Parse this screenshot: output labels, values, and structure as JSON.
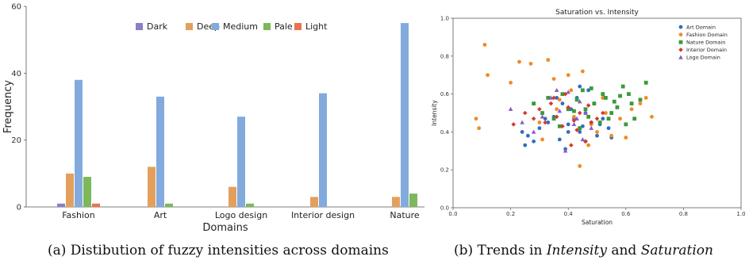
{
  "chart_data": [
    {
      "type": "bar",
      "title": "",
      "xlabel": "Domains",
      "ylabel": "Frequency",
      "ylim": [
        0,
        60
      ],
      "yticks": [
        0,
        20,
        40,
        60
      ],
      "categories": [
        "Fashion",
        "Art",
        "Logo design",
        "Interior design",
        "Nature"
      ],
      "series": [
        {
          "name": "Dark",
          "color": "#8b7fc6",
          "values": [
            1,
            0,
            0,
            0,
            0
          ]
        },
        {
          "name": "Deep",
          "color": "#e3a05c",
          "values": [
            10,
            12,
            6,
            3,
            3
          ]
        },
        {
          "name": "Medium",
          "color": "#82aadd",
          "values": [
            38,
            33,
            27,
            34,
            55
          ]
        },
        {
          "name": "Pale",
          "color": "#7db85b",
          "values": [
            9,
            1,
            1,
            0,
            4
          ]
        },
        {
          "name": "Light",
          "color": "#e9734c",
          "values": [
            1,
            0,
            0,
            0,
            0
          ]
        }
      ],
      "legend": "top",
      "grid": false
    },
    {
      "type": "scatter",
      "title": "Saturation vs. Intensity",
      "xlabel": "Saturation",
      "ylabel": "Intensity",
      "xlim": [
        0.0,
        1.0
      ],
      "ylim": [
        0.0,
        1.0
      ],
      "xticks": [
        "0.0",
        "0.2",
        "0.4",
        "0.6",
        "0.8",
        "1.0"
      ],
      "yticks": [
        "0.0",
        "0.2",
        "0.4",
        "0.6",
        "0.8",
        "1.0"
      ],
      "legend": "top-right",
      "grid": false,
      "series": [
        {
          "name": "Art Domain",
          "marker": "circle",
          "color": "#2f6fbd",
          "x": [
            0.25,
            0.26,
            0.3,
            0.33,
            0.35,
            0.37,
            0.38,
            0.4,
            0.41,
            0.42,
            0.43,
            0.44,
            0.45,
            0.46,
            0.47,
            0.48,
            0.5,
            0.52,
            0.54,
            0.55,
            0.28,
            0.36,
            0.39,
            0.44,
            0.49,
            0.32,
            0.4,
            0.46,
            0.51,
            0.24
          ],
          "y": [
            0.33,
            0.38,
            0.42,
            0.45,
            0.48,
            0.36,
            0.55,
            0.44,
            0.52,
            0.47,
            0.58,
            0.4,
            0.43,
            0.5,
            0.62,
            0.45,
            0.38,
            0.47,
            0.42,
            0.37,
            0.35,
            0.58,
            0.31,
            0.64,
            0.55,
            0.47,
            0.4,
            0.35,
            0.44,
            0.4
          ]
        },
        {
          "name": "Fashion Domain",
          "marker": "circle",
          "color": "#f08a24",
          "x": [
            0.08,
            0.09,
            0.11,
            0.12,
            0.2,
            0.23,
            0.27,
            0.3,
            0.33,
            0.35,
            0.37,
            0.4,
            0.42,
            0.45,
            0.47,
            0.5,
            0.52,
            0.55,
            0.58,
            0.62,
            0.65,
            0.67,
            0.69,
            0.44,
            0.41,
            0.36,
            0.48,
            0.6,
            0.31,
            0.53
          ],
          "y": [
            0.47,
            0.42,
            0.86,
            0.7,
            0.66,
            0.77,
            0.76,
            0.45,
            0.78,
            0.68,
            0.57,
            0.7,
            0.48,
            0.72,
            0.33,
            0.4,
            0.58,
            0.38,
            0.47,
            0.52,
            0.55,
            0.58,
            0.48,
            0.22,
            0.62,
            0.52,
            0.44,
            0.37,
            0.36,
            0.5
          ]
        },
        {
          "name": "Nature Domain",
          "marker": "square",
          "color": "#3a9a3a",
          "x": [
            0.28,
            0.31,
            0.33,
            0.35,
            0.38,
            0.4,
            0.43,
            0.45,
            0.47,
            0.49,
            0.51,
            0.53,
            0.55,
            0.57,
            0.59,
            0.61,
            0.63,
            0.65,
            0.67,
            0.44,
            0.48,
            0.52,
            0.56,
            0.6,
            0.37,
            0.42,
            0.58,
            0.62,
            0.46,
            0.54
          ],
          "y": [
            0.55,
            0.5,
            0.58,
            0.47,
            0.6,
            0.52,
            0.57,
            0.62,
            0.48,
            0.55,
            0.45,
            0.58,
            0.5,
            0.53,
            0.64,
            0.6,
            0.47,
            0.57,
            0.66,
            0.42,
            0.63,
            0.6,
            0.56,
            0.44,
            0.43,
            0.51,
            0.59,
            0.55,
            0.52,
            0.47
          ]
        },
        {
          "name": "Interior Domain",
          "marker": "diamond",
          "color": "#d43a2f",
          "x": [
            0.21,
            0.25,
            0.28,
            0.3,
            0.32,
            0.34,
            0.36,
            0.38,
            0.4,
            0.42,
            0.44,
            0.46,
            0.48,
            0.5,
            0.52,
            0.35,
            0.39,
            0.43,
            0.47,
            0.41
          ],
          "y": [
            0.44,
            0.5,
            0.47,
            0.52,
            0.45,
            0.55,
            0.48,
            0.43,
            0.53,
            0.46,
            0.5,
            0.35,
            0.45,
            0.47,
            0.5,
            0.58,
            0.6,
            0.41,
            0.54,
            0.33
          ]
        },
        {
          "name": "Logo Domain",
          "marker": "triangle",
          "color": "#8a5ac6",
          "x": [
            0.2,
            0.24,
            0.28,
            0.31,
            0.34,
            0.37,
            0.4,
            0.42,
            0.44,
            0.46,
            0.48,
            0.39,
            0.43,
            0.36,
            0.45
          ],
          "y": [
            0.52,
            0.45,
            0.4,
            0.48,
            0.58,
            0.51,
            0.61,
            0.44,
            0.56,
            0.5,
            0.42,
            0.3,
            0.47,
            0.62,
            0.36
          ]
        }
      ]
    }
  ],
  "captions": {
    "a": "(a) Distibution of fuzzy intensities across domains",
    "b_prefix": "(b) Trends in ",
    "b_term1": "Intensity",
    "b_mid": " and ",
    "b_term2": "Saturation"
  }
}
